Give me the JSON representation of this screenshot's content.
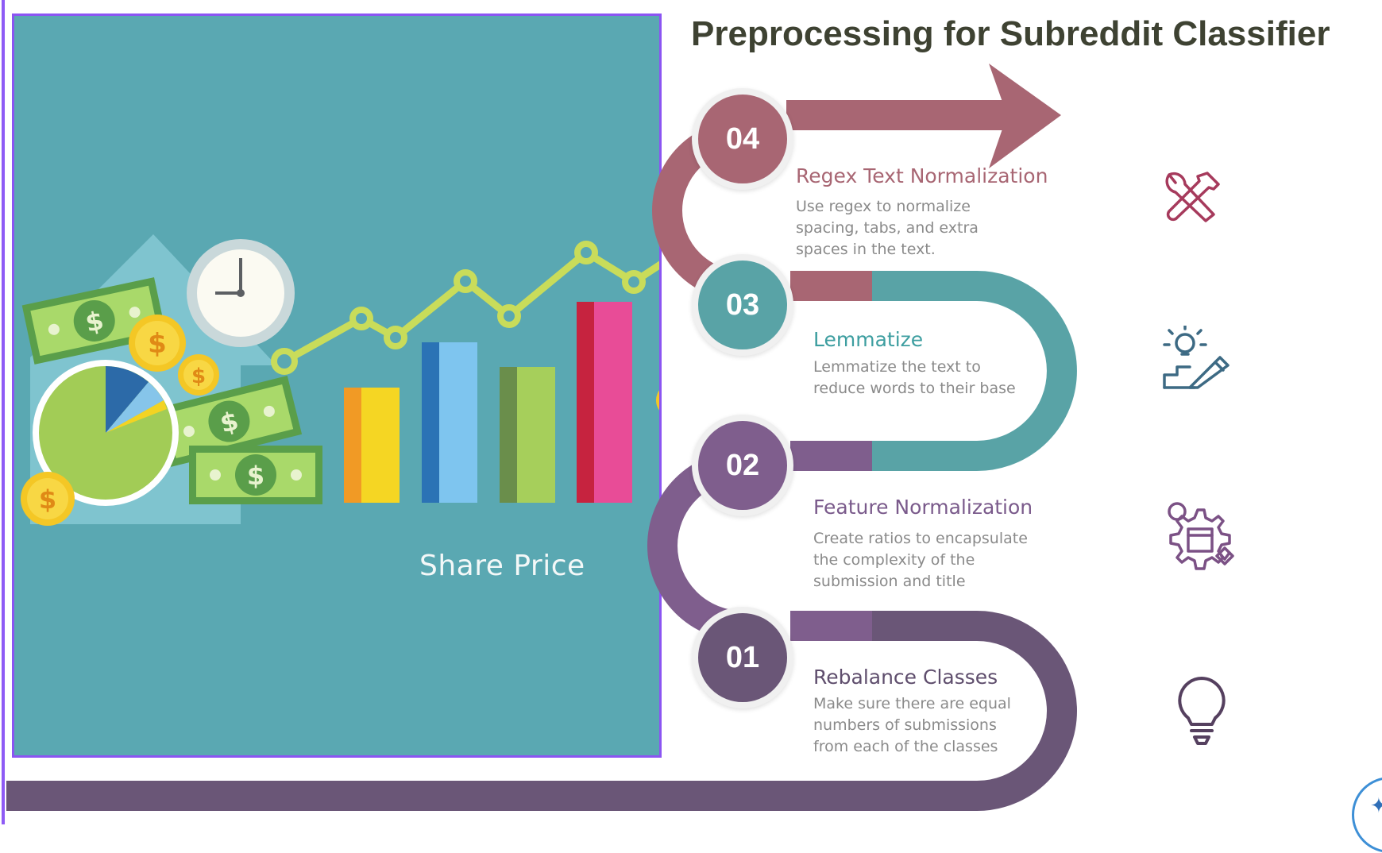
{
  "title": "Preprocessing for Subreddit Classifier",
  "hero_image": {
    "label": "Share Price",
    "icons": [
      "dollar-bill-icon",
      "coin-icon",
      "clock-icon",
      "pie-chart-icon",
      "bar-chart-icon",
      "trend-line-icon",
      "house-arrow-icon"
    ]
  },
  "steps": [
    {
      "number": "04",
      "title": "Regex Text Normalization",
      "description": "Use regex to normalize spacing, tabs, and extra spaces in the text.",
      "color": "#a86673",
      "icon": "tools-icon"
    },
    {
      "number": "03",
      "title": "Lemmatize",
      "description": "Lemmatize the text to reduce words to their base",
      "color": "#59a3a6",
      "icon": "idea-pencil-icon"
    },
    {
      "number": "02",
      "title": "Feature Normalization",
      "description": "Create ratios to encapsulate the complexity of the submission and title",
      "color": "#7f5e8d",
      "icon": "gear-process-icon"
    },
    {
      "number": "01",
      "title": "Rebalance Classes",
      "description": "Make sure there are equal numbers of submissions from each of the classes",
      "color": "#6a5677",
      "icon": "lightbulb-icon"
    }
  ],
  "colors": {
    "background": "#ffffff",
    "hero_background": "#5aa8b2",
    "hero_border": "#8b55f2",
    "title": "#3e4232",
    "description": "#8a8a8a",
    "icon_tools": "#a63a5c",
    "icon_idea": "#3d6a84",
    "icon_gear": "#7b5185",
    "icon_bulb": "#55405f"
  }
}
